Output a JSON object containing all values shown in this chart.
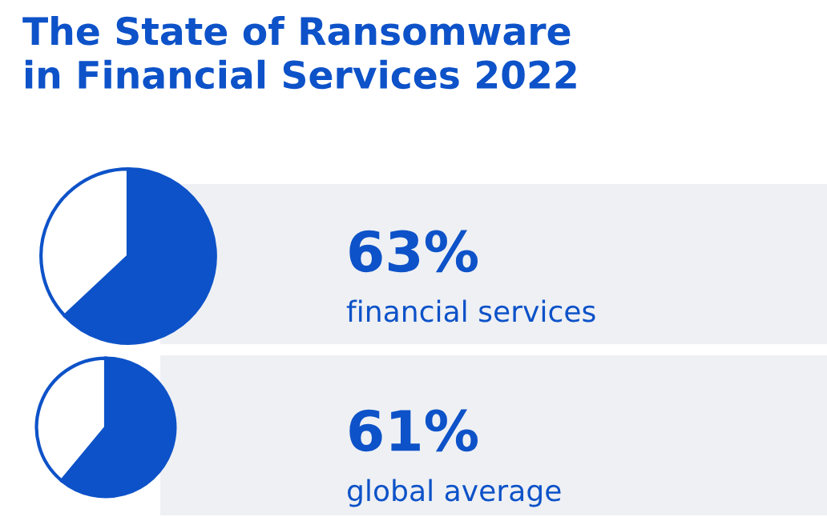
{
  "chart_data": [
    {
      "type": "pie",
      "title": "The State of Ransomware\nin Financial Services 2022",
      "categories": [
        null,
        null
      ],
      "values": [
        63,
        37
      ],
      "colors": [
        "#0d52c8",
        "#ffffff"
      ],
      "value_labels": [
        "63%",
        null
      ],
      "annotations": [
        "financial services"
      ]
    },
    {
      "type": "pie",
      "categories": [
        null,
        null
      ],
      "values": [
        61,
        39
      ],
      "colors": [
        "#0d52c8",
        "#ffffff"
      ],
      "value_labels": [
        "61%",
        null
      ],
      "annotations": [
        "global average"
      ]
    }
  ]
}
